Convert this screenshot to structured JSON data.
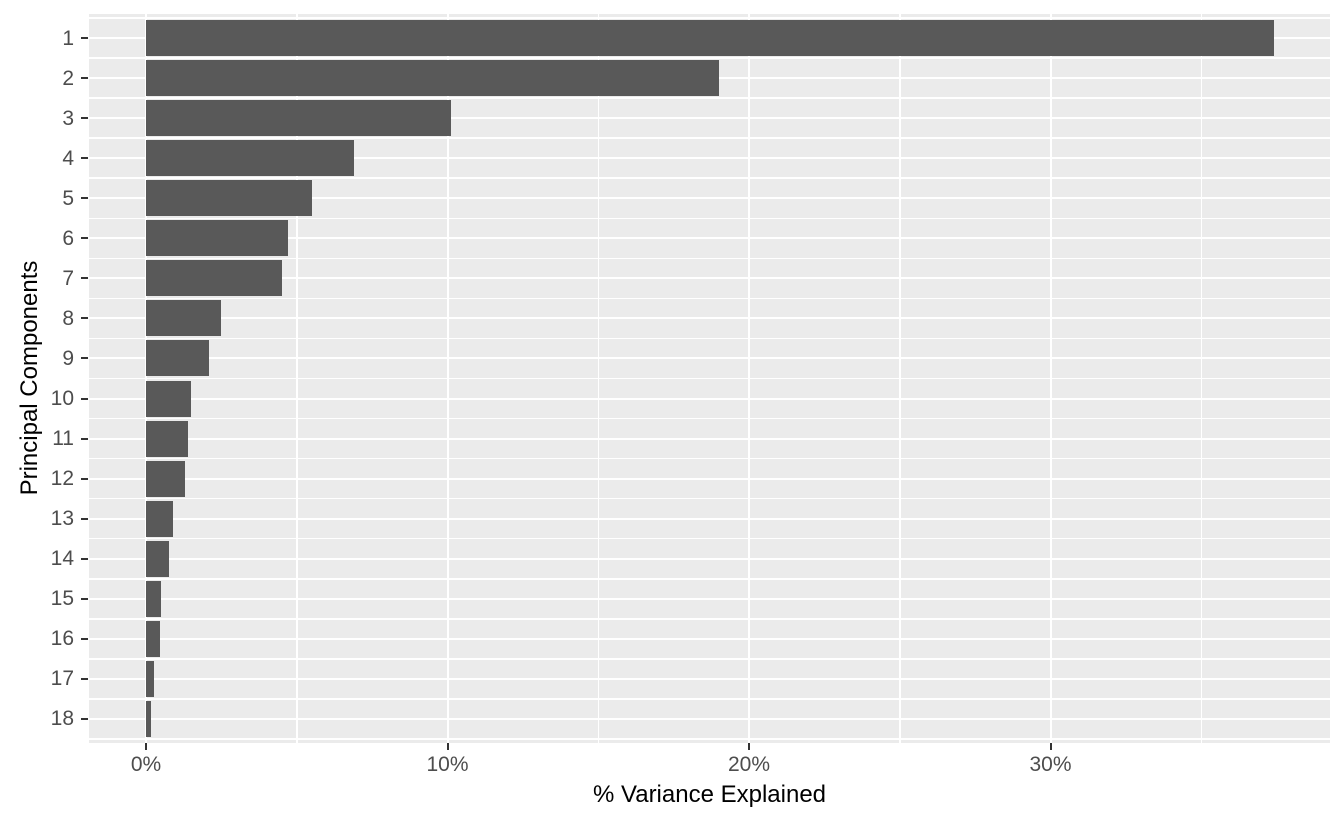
{
  "figure": {
    "background": "#FFFFFF",
    "kind": "ggplot-style horizontal bar chart (PCA scree plot)"
  },
  "chart_data": {
    "type": "bar",
    "orientation": "horizontal",
    "title": "",
    "xlabel": "% Variance Explained",
    "ylabel": "Principal Components",
    "categories": [
      "1",
      "2",
      "3",
      "4",
      "5",
      "6",
      "7",
      "8",
      "9",
      "10",
      "11",
      "12",
      "13",
      "14",
      "15",
      "16",
      "17",
      "18"
    ],
    "values": [
      37.4,
      19.0,
      10.1,
      6.9,
      5.5,
      4.7,
      4.5,
      2.5,
      2.1,
      1.5,
      1.4,
      1.3,
      0.9,
      0.75,
      0.5,
      0.47,
      0.27,
      0.15
    ],
    "x_axis": {
      "tick_labels": [
        "0%",
        "10%",
        "20%",
        "30%"
      ],
      "tick_values": [
        0,
        10,
        20,
        30
      ],
      "minor_tick_values": [
        5,
        15,
        25,
        35
      ],
      "range": [
        -1.87,
        39.33
      ]
    },
    "grid": true,
    "legend_position": "none",
    "style": {
      "bar_color": "#595959",
      "panel_bg": "#EBEBEB",
      "grid_color": "#FFFFFF",
      "tick_label_color": "#4D4D4D",
      "axis_title_color": "#000000",
      "tick_mark_color": "#333333"
    }
  }
}
